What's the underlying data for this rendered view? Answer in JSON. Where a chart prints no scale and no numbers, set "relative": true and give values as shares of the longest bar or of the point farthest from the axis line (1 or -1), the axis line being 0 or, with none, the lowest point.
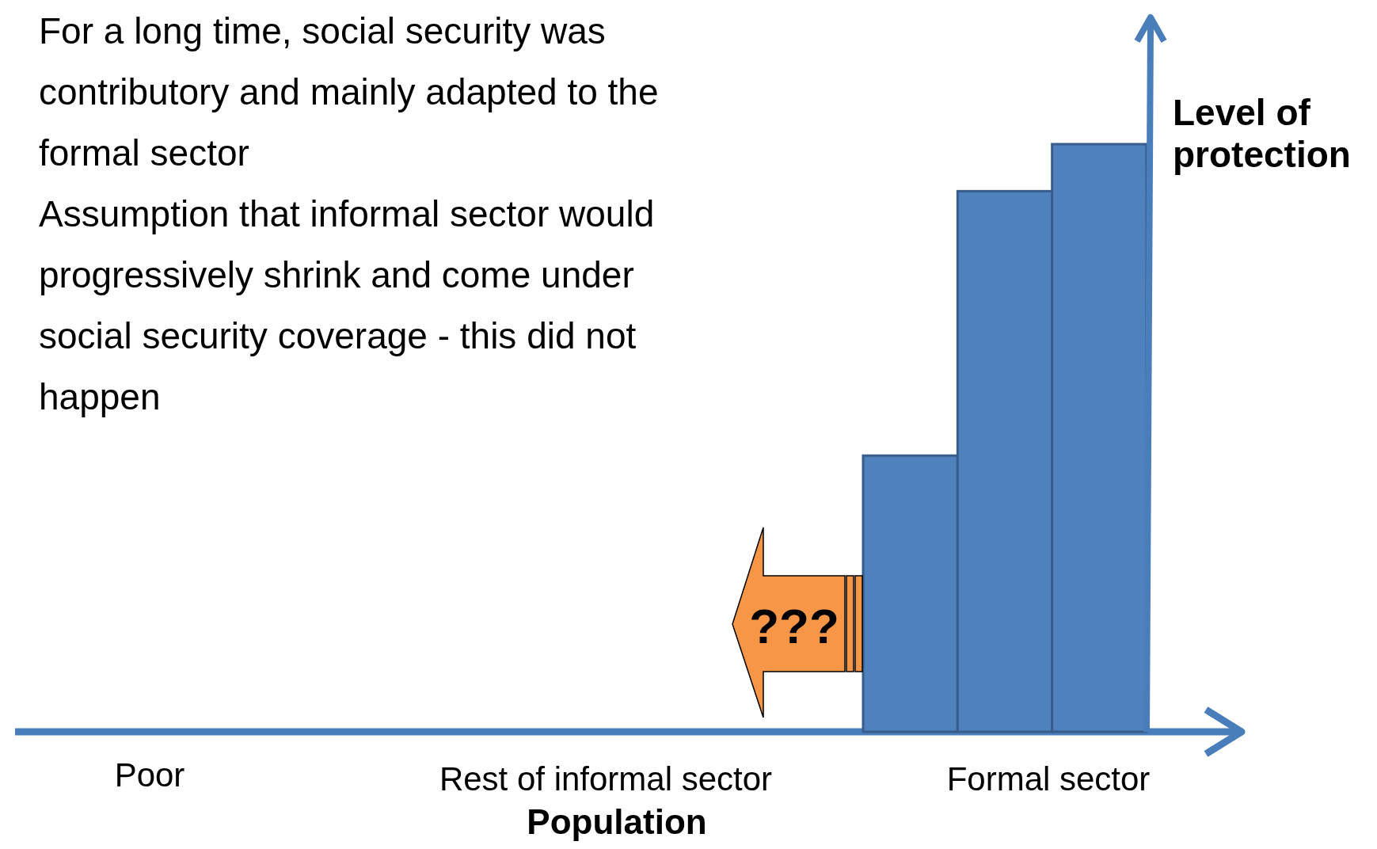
{
  "chart_data": {
    "type": "bar",
    "relative": true,
    "categories": [
      null,
      null,
      null
    ],
    "values": [
      0.47,
      0.92,
      1
    ],
    "color": "#4f81bd",
    "xlabel": "Population",
    "ylabel": "Level of protection",
    "annotations": [
      "For a long time, social security was contributory and mainly adapted to the formal sector",
      "Assumption that informal sector would progressively shrink and come under social security coverage - this did not happen",
      "Poor",
      "Rest of informal sector",
      "Formal sector",
      "???"
    ]
  }
}
